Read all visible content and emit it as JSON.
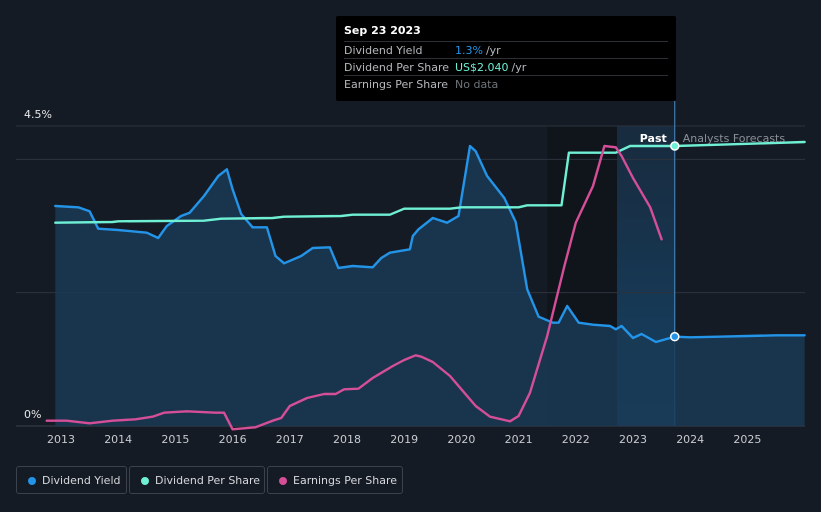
{
  "tooltip": {
    "date": "Sep 23 2023",
    "rows": [
      {
        "label": "Dividend Yield",
        "value": "1.3%",
        "unit": "/yr",
        "color": "#2394e8"
      },
      {
        "label": "Dividend Per Share",
        "value": "US$2.040",
        "unit": "/yr",
        "color": "#6ff0d5"
      },
      {
        "label": "Earnings Per Share",
        "value": "No data",
        "unit": "",
        "color": "#6f747a"
      }
    ]
  },
  "legend": [
    {
      "label": "Dividend Yield",
      "color": "#2394e8"
    },
    {
      "label": "Dividend Per Share",
      "color": "#6ff0d5"
    },
    {
      "label": "Earnings Per Share",
      "color": "#d44e98"
    }
  ],
  "chart_data": {
    "type": "line",
    "y_top_label": "4.5%",
    "y_bottom_label": "0%",
    "ylim": [
      0,
      4.5
    ],
    "xlim": [
      2012.6,
      2026.0
    ],
    "x_ticks": [
      "2013",
      "2014",
      "2015",
      "2016",
      "2017",
      "2018",
      "2019",
      "2020",
      "2021",
      "2022",
      "2023",
      "2024",
      "2025"
    ],
    "past_label": "Past",
    "forecast_label": "Analysts Forecasts",
    "cursor_x": 2023.73,
    "past_region": [
      2022.72,
      2023.73
    ],
    "grid": true,
    "series": [
      {
        "name": "Dividend Yield",
        "color": "#2394e8",
        "x": [
          2012.9,
          2013.3,
          2013.5,
          2013.65,
          2014.0,
          2014.5,
          2014.7,
          2014.85,
          2015.1,
          2015.25,
          2015.5,
          2015.75,
          2015.9,
          2016.0,
          2016.15,
          2016.35,
          2016.6,
          2016.75,
          2016.9,
          2017.2,
          2017.4,
          2017.7,
          2017.85,
          2018.1,
          2018.45,
          2018.6,
          2018.75,
          2019.1,
          2019.15,
          2019.25,
          2019.5,
          2019.75,
          2019.95,
          2020.05,
          2020.15,
          2020.25,
          2020.45,
          2020.75,
          2020.95,
          2021.15,
          2021.35,
          2021.6,
          2021.7,
          2021.85,
          2022.05,
          2022.3,
          2022.6,
          2022.7,
          2022.8,
          2023.0,
          2023.15,
          2023.4,
          2023.73,
          2024.0,
          2024.5,
          2025.0,
          2025.5,
          2026.0
        ],
        "values": [
          3.3,
          3.28,
          3.22,
          2.96,
          2.94,
          2.9,
          2.82,
          3.0,
          3.15,
          3.2,
          3.45,
          3.75,
          3.85,
          3.55,
          3.18,
          2.98,
          2.98,
          2.55,
          2.44,
          2.55,
          2.67,
          2.68,
          2.37,
          2.4,
          2.38,
          2.52,
          2.6,
          2.65,
          2.85,
          2.95,
          3.12,
          3.05,
          3.15,
          3.68,
          4.2,
          4.12,
          3.75,
          3.42,
          3.06,
          2.05,
          1.64,
          1.55,
          1.55,
          1.8,
          1.55,
          1.52,
          1.5,
          1.45,
          1.5,
          1.32,
          1.38,
          1.26,
          1.34,
          1.33,
          1.34,
          1.35,
          1.36,
          1.36
        ]
      },
      {
        "name": "Dividend Per Share",
        "color": "#6ff0d5",
        "x": [
          2012.9,
          2013.9,
          2014.0,
          2015.5,
          2015.8,
          2016.7,
          2016.9,
          2017.9,
          2018.1,
          2018.75,
          2019.0,
          2019.8,
          2020.0,
          2021.0,
          2021.15,
          2021.75,
          2021.88,
          2022.7,
          2022.95,
          2023.73,
          2024.5,
          2025.3,
          2026.0
        ],
        "values": [
          3.05,
          3.06,
          3.07,
          3.08,
          3.11,
          3.12,
          3.14,
          3.15,
          3.17,
          3.17,
          3.26,
          3.26,
          3.28,
          3.28,
          3.31,
          3.31,
          4.1,
          4.1,
          4.2,
          4.2,
          4.22,
          4.24,
          4.26
        ]
      },
      {
        "name": "Earnings Per Share",
        "color": "#d44e98",
        "x": [
          2012.75,
          2013.1,
          2013.5,
          2013.9,
          2014.3,
          2014.6,
          2014.8,
          2015.2,
          2015.7,
          2015.85,
          2016.0,
          2016.4,
          2016.7,
          2016.85,
          2017.0,
          2017.3,
          2017.6,
          2017.8,
          2017.95,
          2018.2,
          2018.45,
          2018.8,
          2019.0,
          2019.2,
          2019.3,
          2019.5,
          2019.8,
          2020.0,
          2020.25,
          2020.5,
          2020.85,
          2021.0,
          2021.2,
          2021.5,
          2021.8,
          2022.0,
          2022.3,
          2022.5,
          2022.7,
          2022.8,
          2023.0,
          2023.3,
          2023.5
        ],
        "values": [
          0.08,
          0.08,
          0.04,
          0.08,
          0.1,
          0.14,
          0.2,
          0.22,
          0.2,
          0.2,
          -0.05,
          -0.02,
          0.08,
          0.12,
          0.3,
          0.42,
          0.48,
          0.48,
          0.55,
          0.56,
          0.72,
          0.9,
          0.99,
          1.06,
          1.04,
          0.96,
          0.75,
          0.55,
          0.3,
          0.14,
          0.07,
          0.15,
          0.5,
          1.35,
          2.4,
          3.05,
          3.6,
          4.2,
          4.18,
          4.05,
          3.72,
          3.28,
          2.8
        ]
      }
    ]
  }
}
